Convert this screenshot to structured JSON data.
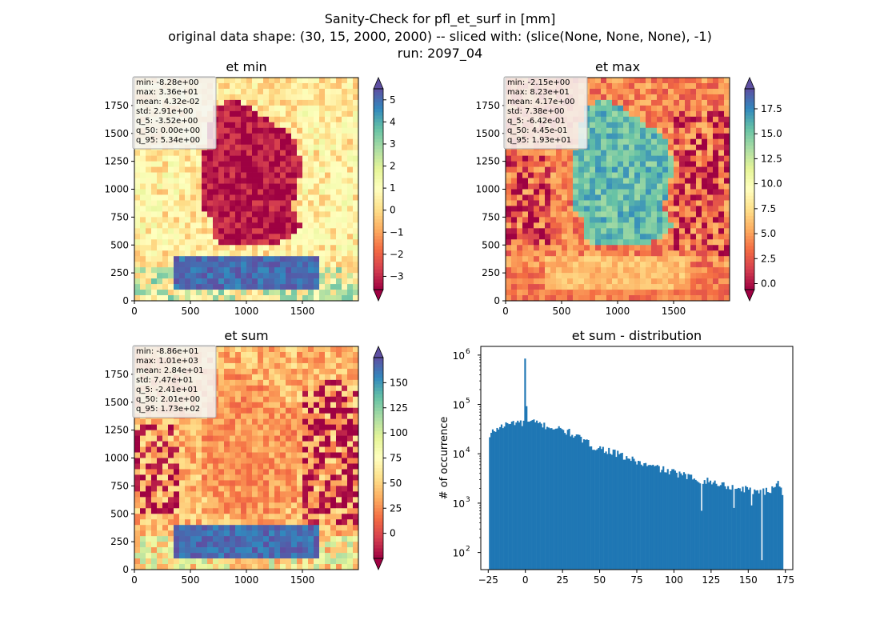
{
  "suptitle": [
    "Sanity-Check for pfl_et_surf in [mm]",
    "original data shape: (30, 15, 2000, 2000) -- sliced with: (slice(None, None, None), -1)",
    "run: 2097_04"
  ],
  "colors": {
    "spectral": [
      "#9e0142",
      "#d53e4f",
      "#f46d43",
      "#fdae61",
      "#fee08b",
      "#ffffbf",
      "#e6f598",
      "#abdda4",
      "#66c2a5",
      "#3288bd",
      "#5e4fa2"
    ],
    "hist_bar": "#1f77b4",
    "stats_box_bg": "#f5f5f5",
    "stats_box_border": "#aaaaaa"
  },
  "chart_data": [
    {
      "type": "heatmap",
      "title": "et min",
      "colormap": "Spectral",
      "x_ticks": [
        "0",
        "500",
        "1000",
        "1500"
      ],
      "y_ticks": [
        "0",
        "250",
        "500",
        "750",
        "1000",
        "1250",
        "1500",
        "1750"
      ],
      "xlim": [
        0,
        2000
      ],
      "ylim": [
        0,
        2000
      ],
      "colorbar": {
        "range": [
          -3.6,
          5.5
        ],
        "ticks": [
          "5",
          "4",
          "3",
          "2",
          "1",
          "0",
          "−1",
          "−2",
          "−3"
        ],
        "tick_values": [
          5,
          4,
          3,
          2,
          1,
          0,
          -1,
          -2,
          -3
        ],
        "extend": "both"
      },
      "pattern": {
        "land_value": -3.3,
        "alps_value": 5.0,
        "bg_value": 0.3,
        "alt_value": 1.2
      },
      "stats": [
        "min: -8.28e+00",
        "max: 3.36e+01",
        "mean: 4.32e-02",
        "std: 2.91e+00",
        "q_5: -3.52e+00",
        "q_50: 0.00e+00",
        "q_95: 5.34e+00"
      ]
    },
    {
      "type": "heatmap",
      "title": "et max",
      "colormap": "Spectral",
      "x_ticks": [
        "0",
        "500",
        "1000",
        "1500"
      ],
      "y_ticks": [
        "0",
        "250",
        "500",
        "750",
        "1000",
        "1250",
        "1500",
        "1750"
      ],
      "xlim": [
        0,
        2000
      ],
      "ylim": [
        0,
        2000
      ],
      "colorbar": {
        "range": [
          -0.6,
          19.5
        ],
        "ticks": [
          "17.5",
          "15.0",
          "12.5",
          "10.0",
          "7.5",
          "5.0",
          "2.5",
          "0.0"
        ],
        "tick_values": [
          17.5,
          15,
          12.5,
          10,
          7.5,
          5,
          2.5,
          0
        ],
        "extend": "both"
      },
      "pattern": {
        "land_value": 15.5,
        "alps_value": 6.0,
        "bg_value": 4.0,
        "alt_value": -0.5
      },
      "stats": [
        "min: -2.15e+00",
        "max: 8.23e+01",
        "mean: 4.17e+00",
        "std: 7.38e+00",
        "q_5: -6.42e-01",
        "q_50: 4.45e-01",
        "q_95: 1.93e+01"
      ]
    },
    {
      "type": "heatmap",
      "title": "et sum",
      "colormap": "Spectral",
      "x_ticks": [
        "0",
        "500",
        "1000",
        "1500"
      ],
      "y_ticks": [
        "0",
        "250",
        "500",
        "750",
        "1000",
        "1250",
        "1500",
        "1750"
      ],
      "xlim": [
        0,
        2000
      ],
      "ylim": [
        0,
        2000
      ],
      "colorbar": {
        "range": [
          -25,
          175
        ],
        "ticks": [
          "150",
          "125",
          "100",
          "75",
          "50",
          "25",
          "0"
        ],
        "tick_values": [
          150,
          125,
          100,
          75,
          50,
          25,
          0
        ],
        "extend": "both"
      },
      "pattern": {
        "land_value": 28,
        "alps_value": 165,
        "bg_value": 40,
        "alt_value": -22
      },
      "stats": [
        "min: -8.86e+01",
        "max: 1.01e+03",
        "mean: 2.84e+01",
        "std: 7.47e+01",
        "q_5: -2.41e+01",
        "q_50: 2.01e+00",
        "q_95: 1.73e+02"
      ]
    },
    {
      "type": "bar",
      "title": "et sum - distribution",
      "xlabel": "",
      "ylabel": "# of occurrence",
      "yscale": "log",
      "xlim": [
        -30,
        180
      ],
      "ylim": [
        45,
        1500000
      ],
      "x_ticks": [
        "−25",
        "0",
        "25",
        "50",
        "75",
        "100",
        "125",
        "150",
        "175"
      ],
      "x_tick_values": [
        -25,
        0,
        25,
        50,
        75,
        100,
        125,
        150,
        175
      ],
      "y_ticks": [
        {
          "base": "10",
          "exp": "2",
          "value": 100
        },
        {
          "base": "10",
          "exp": "3",
          "value": 1000
        },
        {
          "base": "10",
          "exp": "4",
          "value": 10000
        },
        {
          "base": "10",
          "exp": "5",
          "value": 100000
        },
        {
          "base": "10",
          "exp": "6",
          "value": 1000000
        }
      ],
      "bins": {
        "start": -24.5,
        "end": 173.5,
        "count": 200
      },
      "anchors": [
        [
          -24.5,
          20000
        ],
        [
          -22,
          28000
        ],
        [
          -18,
          34000
        ],
        [
          -12,
          40000
        ],
        [
          -6,
          45000
        ],
        [
          -1,
          40000
        ],
        [
          0,
          850000
        ],
        [
          1,
          42000
        ],
        [
          5,
          44000
        ],
        [
          10,
          40000
        ],
        [
          15,
          36000
        ],
        [
          20,
          33000
        ],
        [
          25,
          30000
        ],
        [
          30,
          27000
        ],
        [
          35,
          22000
        ],
        [
          40,
          18000
        ],
        [
          45,
          14500
        ],
        [
          50,
          13000
        ],
        [
          55,
          12000
        ],
        [
          60,
          10500
        ],
        [
          65,
          9000
        ],
        [
          70,
          8000
        ],
        [
          75,
          7000
        ],
        [
          80,
          6000
        ],
        [
          85,
          5500
        ],
        [
          90,
          5200
        ],
        [
          95,
          4500
        ],
        [
          100,
          4200
        ],
        [
          105,
          3800
        ],
        [
          110,
          3400
        ],
        [
          115,
          3200
        ],
        [
          120,
          2900
        ],
        [
          125,
          2700
        ],
        [
          130,
          2500
        ],
        [
          135,
          2300
        ],
        [
          140,
          2100
        ],
        [
          145,
          2000
        ],
        [
          150,
          1900
        ],
        [
          155,
          1800
        ],
        [
          160,
          1700
        ],
        [
          165,
          1800
        ],
        [
          170,
          3000
        ],
        [
          173.5,
          1500
        ]
      ],
      "outliers": [
        [
          159.5,
          70
        ],
        [
          118.5,
          700
        ],
        [
          152.5,
          900
        ],
        [
          140.5,
          800
        ]
      ]
    }
  ]
}
